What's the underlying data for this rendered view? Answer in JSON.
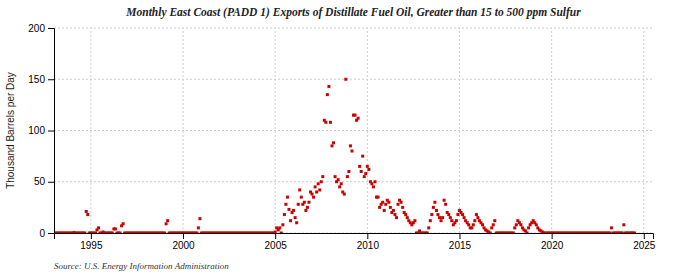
{
  "chart_data": {
    "type": "scatter",
    "title": "Monthly East Coast (PADD 1) Exports of Distillate Fuel Oil, Greater than 15 to 500 ppm Sulfur",
    "ylabel": "Thousand Barrels per Day",
    "annotations": [
      "Source: U.S. Energy Information Administration"
    ],
    "color": "#cc0000",
    "marker": "square",
    "grid": true,
    "xlim": [
      1993.0,
      2025.5
    ],
    "ylim": [
      0,
      200
    ],
    "xticks": [
      1995,
      2000,
      2005,
      2010,
      2015,
      2020,
      2025
    ],
    "yticks": [
      0,
      50,
      100,
      150,
      200
    ],
    "x": [
      1993.0,
      1993.083,
      1993.167,
      1993.25,
      1993.333,
      1993.417,
      1993.5,
      1993.583,
      1993.667,
      1993.75,
      1993.833,
      1993.917,
      1994.0,
      1994.083,
      1994.167,
      1994.25,
      1994.333,
      1994.417,
      1994.5,
      1994.583,
      1994.667,
      1994.75,
      1994.833,
      1994.917,
      1995.0,
      1995.083,
      1995.167,
      1995.25,
      1995.333,
      1995.417,
      1995.5,
      1995.583,
      1995.667,
      1995.75,
      1995.833,
      1995.917,
      1996.0,
      1996.083,
      1996.167,
      1996.25,
      1996.333,
      1996.417,
      1996.5,
      1996.583,
      1996.667,
      1996.75,
      1996.833,
      1996.917,
      1997.0,
      1997.083,
      1997.167,
      1997.25,
      1997.333,
      1997.417,
      1997.5,
      1997.583,
      1997.667,
      1997.75,
      1997.833,
      1997.917,
      1998.0,
      1998.083,
      1998.167,
      1998.25,
      1998.333,
      1998.417,
      1998.5,
      1998.583,
      1998.667,
      1998.75,
      1998.833,
      1998.917,
      1999.0,
      1999.083,
      1999.167,
      1999.25,
      1999.333,
      1999.417,
      1999.5,
      1999.583,
      1999.667,
      1999.75,
      1999.833,
      1999.917,
      2000.0,
      2000.083,
      2000.167,
      2000.25,
      2000.333,
      2000.417,
      2000.5,
      2000.583,
      2000.667,
      2000.75,
      2000.833,
      2000.917,
      2001.0,
      2001.083,
      2001.167,
      2001.25,
      2001.333,
      2001.417,
      2001.5,
      2001.583,
      2001.667,
      2001.75,
      2001.833,
      2001.917,
      2002.0,
      2002.083,
      2002.167,
      2002.25,
      2002.333,
      2002.417,
      2002.5,
      2002.583,
      2002.667,
      2002.75,
      2002.833,
      2002.917,
      2003.0,
      2003.083,
      2003.167,
      2003.25,
      2003.333,
      2003.417,
      2003.5,
      2003.583,
      2003.667,
      2003.75,
      2003.833,
      2003.917,
      2004.0,
      2004.083,
      2004.167,
      2004.25,
      2004.333,
      2004.417,
      2004.5,
      2004.583,
      2004.667,
      2004.75,
      2004.833,
      2004.917,
      2005.0,
      2005.083,
      2005.167,
      2005.25,
      2005.333,
      2005.417,
      2005.5,
      2005.583,
      2005.667,
      2005.75,
      2005.833,
      2005.917,
      2006.0,
      2006.083,
      2006.167,
      2006.25,
      2006.333,
      2006.417,
      2006.5,
      2006.583,
      2006.667,
      2006.75,
      2006.833,
      2006.917,
      2007.0,
      2007.083,
      2007.167,
      2007.25,
      2007.333,
      2007.417,
      2007.5,
      2007.583,
      2007.667,
      2007.75,
      2007.833,
      2007.917,
      2008.0,
      2008.083,
      2008.167,
      2008.25,
      2008.333,
      2008.417,
      2008.5,
      2008.583,
      2008.667,
      2008.75,
      2008.833,
      2008.917,
      2009.0,
      2009.083,
      2009.167,
      2009.25,
      2009.333,
      2009.417,
      2009.5,
      2009.583,
      2009.667,
      2009.75,
      2009.833,
      2009.917,
      2010.0,
      2010.083,
      2010.167,
      2010.25,
      2010.333,
      2010.417,
      2010.5,
      2010.583,
      2010.667,
      2010.75,
      2010.833,
      2010.917,
      2011.0,
      2011.083,
      2011.167,
      2011.25,
      2011.333,
      2011.417,
      2011.5,
      2011.583,
      2011.667,
      2011.75,
      2011.833,
      2011.917,
      2012.0,
      2012.083,
      2012.167,
      2012.25,
      2012.333,
      2012.417,
      2012.5,
      2012.583,
      2012.667,
      2012.75,
      2012.833,
      2012.917,
      2013.0,
      2013.083,
      2013.167,
      2013.25,
      2013.333,
      2013.417,
      2013.5,
      2013.583,
      2013.667,
      2013.75,
      2013.833,
      2013.917,
      2014.0,
      2014.083,
      2014.167,
      2014.25,
      2014.333,
      2014.417,
      2014.5,
      2014.583,
      2014.667,
      2014.75,
      2014.833,
      2014.917,
      2015.0,
      2015.083,
      2015.167,
      2015.25,
      2015.333,
      2015.417,
      2015.5,
      2015.583,
      2015.667,
      2015.75,
      2015.833,
      2015.917,
      2016.0,
      2016.083,
      2016.167,
      2016.25,
      2016.333,
      2016.417,
      2016.5,
      2016.583,
      2016.667,
      2016.75,
      2016.833,
      2016.917,
      2017.0,
      2017.083,
      2017.167,
      2017.25,
      2017.333,
      2017.417,
      2017.5,
      2017.583,
      2017.667,
      2017.75,
      2017.833,
      2017.917,
      2018.0,
      2018.083,
      2018.167,
      2018.25,
      2018.333,
      2018.417,
      2018.5,
      2018.583,
      2018.667,
      2018.75,
      2018.833,
      2018.917,
      2019.0,
      2019.083,
      2019.167,
      2019.25,
      2019.333,
      2019.417,
      2019.5,
      2019.583,
      2019.667,
      2019.75,
      2019.833,
      2019.917,
      2020.0,
      2020.083,
      2020.167,
      2020.25,
      2020.333,
      2020.417,
      2020.5,
      2020.583,
      2020.667,
      2020.75,
      2020.833,
      2020.917,
      2021.0,
      2021.083,
      2021.167,
      2021.25,
      2021.333,
      2021.417,
      2021.5,
      2021.583,
      2021.667,
      2021.75,
      2021.833,
      2021.917,
      2022.0,
      2022.083,
      2022.167,
      2022.25,
      2022.333,
      2022.417,
      2022.5,
      2022.583,
      2022.667,
      2022.75,
      2022.833,
      2022.917,
      2023.0,
      2023.083,
      2023.167,
      2023.25,
      2023.333,
      2023.417,
      2023.5,
      2023.583,
      2023.667,
      2023.75,
      2023.833,
      2023.917,
      2024.0,
      2024.083,
      2024.167,
      2024.25,
      2024.333,
      2024.417,
      2024.5
    ],
    "values": [
      0,
      0,
      0,
      0,
      0,
      0,
      0,
      0,
      0,
      0,
      0,
      0,
      0,
      0.5,
      0,
      0,
      0,
      0,
      0,
      0,
      0,
      21,
      18,
      0,
      0,
      0,
      0,
      0,
      3,
      5,
      0,
      0,
      1,
      0,
      0,
      0,
      0,
      0,
      0,
      4,
      4,
      0,
      0,
      0,
      7,
      9,
      0,
      0,
      0,
      0,
      0,
      0,
      0,
      0,
      0,
      0,
      0,
      0,
      0,
      0,
      0,
      0,
      0,
      0,
      0,
      0,
      0,
      0,
      0,
      0,
      0,
      0,
      0,
      9,
      12,
      0,
      0,
      0,
      0,
      0,
      0,
      0,
      0,
      0,
      0,
      0,
      0,
      0,
      0,
      0,
      0,
      0,
      0,
      0,
      5,
      14,
      0,
      0,
      0,
      0,
      0,
      0,
      0,
      0,
      0,
      0,
      0,
      0,
      0,
      0,
      0,
      0,
      0,
      0,
      0,
      0,
      0,
      0,
      0,
      0,
      0,
      0,
      0,
      0,
      0,
      0,
      0,
      0,
      0,
      0,
      0,
      0,
      0,
      0,
      0,
      0,
      0,
      0,
      0,
      0,
      0,
      0,
      0,
      0,
      1,
      5,
      3,
      5,
      0,
      8,
      18,
      28,
      35,
      23,
      12,
      20,
      22,
      15,
      10,
      28,
      42,
      35,
      28,
      30,
      22,
      25,
      30,
      40,
      38,
      35,
      45,
      40,
      48,
      42,
      50,
      55,
      110,
      108,
      135,
      143,
      108,
      85,
      88,
      55,
      50,
      52,
      45,
      48,
      40,
      38,
      150,
      55,
      60,
      85,
      80,
      115,
      115,
      110,
      112,
      65,
      60,
      75,
      55,
      58,
      65,
      62,
      50,
      48,
      45,
      50,
      35,
      35,
      25,
      28,
      30,
      22,
      28,
      32,
      30,
      25,
      20,
      22,
      18,
      15,
      28,
      32,
      30,
      25,
      20,
      18,
      15,
      12,
      10,
      8,
      10,
      12,
      0,
      0,
      2,
      0,
      0,
      0,
      0,
      0,
      5,
      12,
      18,
      25,
      30,
      22,
      18,
      15,
      12,
      15,
      32,
      28,
      20,
      18,
      15,
      12,
      8,
      10,
      12,
      18,
      22,
      20,
      18,
      15,
      12,
      10,
      8,
      5,
      5,
      8,
      12,
      18,
      15,
      12,
      10,
      8,
      5,
      3,
      2,
      1,
      0,
      5,
      8,
      12,
      0,
      0,
      0,
      0,
      0,
      0,
      0,
      0,
      0,
      0,
      0,
      0,
      5,
      8,
      12,
      10,
      8,
      5,
      3,
      2,
      0,
      5,
      8,
      10,
      12,
      10,
      8,
      5,
      3,
      2,
      1,
      0,
      0,
      0,
      0,
      0,
      0,
      0,
      0,
      0,
      0,
      0,
      0,
      0,
      0,
      0,
      0,
      0,
      0,
      0,
      0,
      0,
      0,
      0,
      0,
      0,
      0,
      0,
      0,
      0,
      0,
      0,
      0,
      0,
      0,
      0,
      0,
      0,
      0,
      0,
      0,
      0,
      0,
      0,
      0,
      5,
      0,
      0,
      0,
      0,
      0,
      0,
      0,
      8,
      0,
      0,
      0,
      0,
      0,
      0,
      0
    ]
  }
}
